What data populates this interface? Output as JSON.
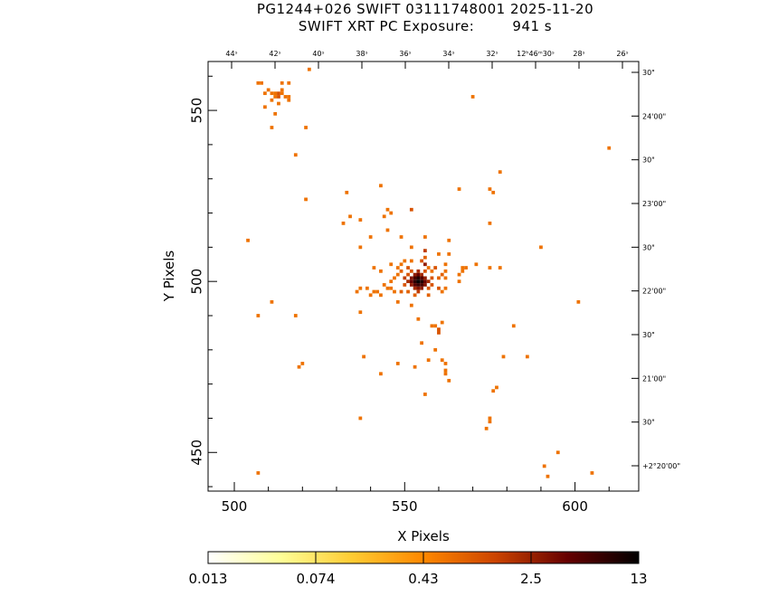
{
  "title_line1": "PG1244+026 SWIFT 03111748001 2025-11-20",
  "title_line2": "SWIFT XRT PC Exposure:        941 s",
  "chart_data": {
    "type": "heatmap",
    "xlabel": "X Pixels",
    "ylabel": "Y Pixels",
    "xlim": [
      492.3,
      618.7
    ],
    "ylim": [
      438.7,
      564.3
    ],
    "x_ticks": [
      500,
      550,
      600
    ],
    "y_ticks": [
      450,
      500,
      550
    ],
    "top_ra_ticks": [
      "44ˢ",
      "42ˢ",
      "40ˢ",
      "38ˢ",
      "36ˢ",
      "34ˢ",
      "32ˢ",
      "12ʰ46ᵐ30ˢ",
      "28ˢ",
      "26ˢ"
    ],
    "right_dec_ticks": [
      "30\"",
      "24'00\"",
      "30\"",
      "23'00\"",
      "30\"",
      "22'00\"",
      "30\"",
      "21'00\"",
      "30\"",
      "+2°20'00\""
    ],
    "colorbar": {
      "ticks": [
        "0.013",
        "0.074",
        "0.43",
        "2.5",
        "13"
      ],
      "scale": "log",
      "colors": [
        "#ffffff",
        "#ffff99",
        "#ffcc33",
        "#ff8800",
        "#cc4400",
        "#660000",
        "#000000"
      ]
    },
    "pixels": [
      [
        554,
        500,
        13
      ],
      [
        553,
        500,
        8
      ],
      [
        555,
        500,
        9
      ],
      [
        554,
        501,
        9
      ],
      [
        554,
        499,
        7
      ],
      [
        553,
        501,
        6
      ],
      [
        555,
        501,
        5
      ],
      [
        553,
        499,
        5
      ],
      [
        555,
        499,
        6
      ],
      [
        552,
        500,
        4
      ],
      [
        556,
        500,
        4
      ],
      [
        554,
        502,
        4
      ],
      [
        554,
        498,
        3
      ],
      [
        552,
        501,
        3
      ],
      [
        556,
        501,
        2.5
      ],
      [
        552,
        499,
        2.5
      ],
      [
        556,
        499,
        3
      ],
      [
        553,
        502,
        2.5
      ],
      [
        555,
        502,
        2
      ],
      [
        553,
        498,
        2
      ],
      [
        555,
        498,
        2.5
      ],
      [
        551,
        500,
        2
      ],
      [
        557,
        500,
        2
      ],
      [
        554,
        503,
        2
      ],
      [
        554,
        497,
        1.5
      ],
      [
        550,
        501,
        1.5
      ],
      [
        558,
        501,
        1
      ],
      [
        551,
        502,
        1
      ],
      [
        557,
        498,
        1
      ],
      [
        552,
        503,
        1
      ],
      [
        556,
        503,
        1
      ],
      [
        550,
        499,
        1
      ],
      [
        558,
        499,
        1
      ],
      [
        556,
        505,
        2.5
      ],
      [
        555,
        506,
        1
      ],
      [
        551,
        504,
        1
      ],
      [
        559,
        504,
        1
      ],
      [
        549,
        503,
        0.8
      ],
      [
        549,
        497,
        0.8
      ],
      [
        560,
        498,
        1
      ],
      [
        561,
        502,
        0.8
      ],
      [
        557,
        496,
        0.8
      ],
      [
        553,
        496,
        0.8
      ],
      [
        551,
        497,
        0.8
      ],
      [
        548,
        502,
        0.6
      ],
      [
        560,
        501,
        0.8
      ],
      [
        558,
        503,
        0.6
      ],
      [
        556,
        507,
        0.8
      ],
      [
        556,
        509,
        1.5
      ],
      [
        557,
        504,
        0.6
      ],
      [
        561,
        497,
        0.6
      ],
      [
        562,
        498,
        0.6
      ],
      [
        562,
        501,
        0.6
      ],
      [
        562,
        505,
        0.6
      ],
      [
        560,
        508,
        0.6
      ],
      [
        563,
        508,
        0.6
      ],
      [
        562,
        503,
        0.6
      ],
      [
        550,
        506,
        0.6
      ],
      [
        549,
        505,
        0.6
      ],
      [
        552,
        506,
        0.6
      ],
      [
        547,
        497,
        0.6
      ],
      [
        546,
        498,
        0.6
      ],
      [
        545,
        498,
        0.6
      ],
      [
        546,
        500,
        0.6
      ],
      [
        547,
        501,
        0.6
      ],
      [
        548,
        504,
        0.6
      ],
      [
        546,
        505,
        0.6
      ],
      [
        543,
        503,
        0.6
      ],
      [
        544,
        499,
        0.6
      ],
      [
        543,
        496,
        0.6
      ],
      [
        548,
        494,
        0.6
      ],
      [
        552,
        493,
        0.6
      ],
      [
        554,
        489,
        0.6
      ],
      [
        558,
        487,
        0.6
      ],
      [
        559,
        487,
        0.6
      ],
      [
        560,
        485,
        1
      ],
      [
        560,
        486,
        1
      ],
      [
        561,
        488,
        0.6
      ],
      [
        555,
        482,
        0.6
      ],
      [
        559,
        480,
        0.6
      ],
      [
        561,
        477,
        0.6
      ],
      [
        562,
        476,
        0.6
      ],
      [
        562,
        474,
        0.6
      ],
      [
        562,
        473,
        0.6
      ],
      [
        563,
        471,
        0.6
      ],
      [
        557,
        477,
        0.6
      ],
      [
        553,
        475,
        0.6
      ],
      [
        548,
        476,
        0.6
      ],
      [
        537,
        498,
        0.6
      ],
      [
        539,
        498,
        0.6
      ],
      [
        540,
        496,
        0.6
      ],
      [
        537,
        491,
        0.6
      ],
      [
        542,
        497,
        0.6
      ],
      [
        541,
        497,
        0.6
      ],
      [
        536,
        497,
        0.6
      ],
      [
        538,
        478,
        0.6
      ],
      [
        543,
        473,
        0.6
      ],
      [
        537,
        460,
        0.6
      ],
      [
        556,
        467,
        0.6
      ],
      [
        566,
        500,
        0.6
      ],
      [
        566,
        502,
        0.6
      ],
      [
        567,
        503,
        0.6
      ],
      [
        567,
        504,
        0.6
      ],
      [
        568,
        504,
        0.6
      ],
      [
        571,
        505,
        0.6
      ],
      [
        575,
        504,
        0.6
      ],
      [
        578,
        504,
        0.6
      ],
      [
        575,
        517,
        0.6
      ],
      [
        576,
        526,
        0.6
      ],
      [
        575,
        527,
        0.6
      ],
      [
        578,
        532,
        0.6
      ],
      [
        566,
        527,
        0.6
      ],
      [
        570,
        554,
        0.6
      ],
      [
        582,
        487,
        0.6
      ],
      [
        586,
        478,
        0.6
      ],
      [
        579,
        478,
        0.6
      ],
      [
        577,
        469,
        0.6
      ],
      [
        576,
        468,
        0.6
      ],
      [
        575,
        460,
        0.6
      ],
      [
        575,
        459,
        0.6
      ],
      [
        574,
        457,
        0.6
      ],
      [
        590,
        510,
        0.6
      ],
      [
        601,
        494,
        0.6
      ],
      [
        595,
        450,
        0.6
      ],
      [
        591,
        446,
        0.6
      ],
      [
        592,
        443,
        0.6
      ],
      [
        605,
        444,
        0.6
      ],
      [
        610,
        539,
        0.6
      ],
      [
        504,
        512,
        0.6
      ],
      [
        507,
        490,
        0.6
      ],
      [
        511,
        494,
        0.6
      ],
      [
        518,
        490,
        0.6
      ],
      [
        519,
        475,
        0.6
      ],
      [
        520,
        476,
        0.6
      ],
      [
        521,
        524,
        0.6
      ],
      [
        521,
        545,
        0.6
      ],
      [
        518,
        537,
        0.6
      ],
      [
        522,
        562,
        0.6
      ],
      [
        507,
        444,
        0.6
      ],
      [
        507,
        558,
        0.6
      ],
      [
        508,
        558,
        0.6
      ],
      [
        509,
        555,
        0.6
      ],
      [
        510,
        556,
        0.6
      ],
      [
        511,
        555,
        0.6
      ],
      [
        511,
        553,
        0.6
      ],
      [
        512,
        555,
        0.6
      ],
      [
        512,
        554,
        0.6
      ],
      [
        513,
        555,
        1
      ],
      [
        513,
        554,
        1
      ],
      [
        514,
        555,
        0.6
      ],
      [
        515,
        554,
        0.6
      ],
      [
        516,
        554,
        0.6
      ],
      [
        516,
        553,
        0.6
      ],
      [
        514,
        556,
        0.6
      ],
      [
        516,
        558,
        0.6
      ],
      [
        514,
        558,
        0.6
      ],
      [
        509,
        551,
        0.6
      ],
      [
        512,
        549,
        0.6
      ],
      [
        513,
        552,
        0.6
      ],
      [
        511,
        545,
        0.6
      ],
      [
        533,
        526,
        0.6
      ],
      [
        534,
        519,
        0.6
      ],
      [
        532,
        517,
        0.6
      ],
      [
        537,
        518,
        0.6
      ],
      [
        537,
        510,
        0.6
      ],
      [
        540,
        513,
        0.6
      ],
      [
        544,
        519,
        0.6
      ],
      [
        545,
        521,
        0.6
      ],
      [
        546,
        520,
        0.6
      ],
      [
        543,
        528,
        0.6
      ],
      [
        541,
        504,
        0.6
      ],
      [
        545,
        515,
        0.6
      ],
      [
        549,
        513,
        0.6
      ],
      [
        552,
        510,
        0.6
      ],
      [
        556,
        513,
        0.6
      ],
      [
        563,
        512,
        0.6
      ],
      [
        552,
        521,
        1
      ]
    ]
  }
}
